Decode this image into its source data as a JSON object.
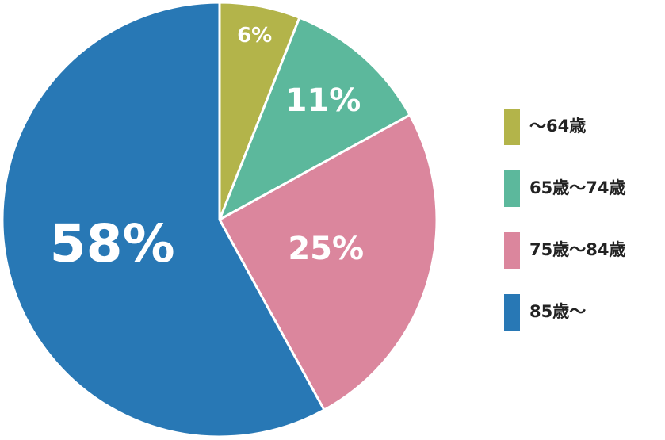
{
  "chart_data": {
    "type": "pie",
    "categories": [
      "～64歳",
      "65歳～74歳",
      "75歳～84歳",
      "85歳～"
    ],
    "values": [
      6,
      11,
      25,
      58
    ],
    "value_labels": [
      "6%",
      "11%",
      "25%",
      "58%"
    ],
    "colors": [
      "#b3b44a",
      "#5cb89c",
      "#db869d",
      "#2878b5"
    ],
    "legend": "right"
  }
}
